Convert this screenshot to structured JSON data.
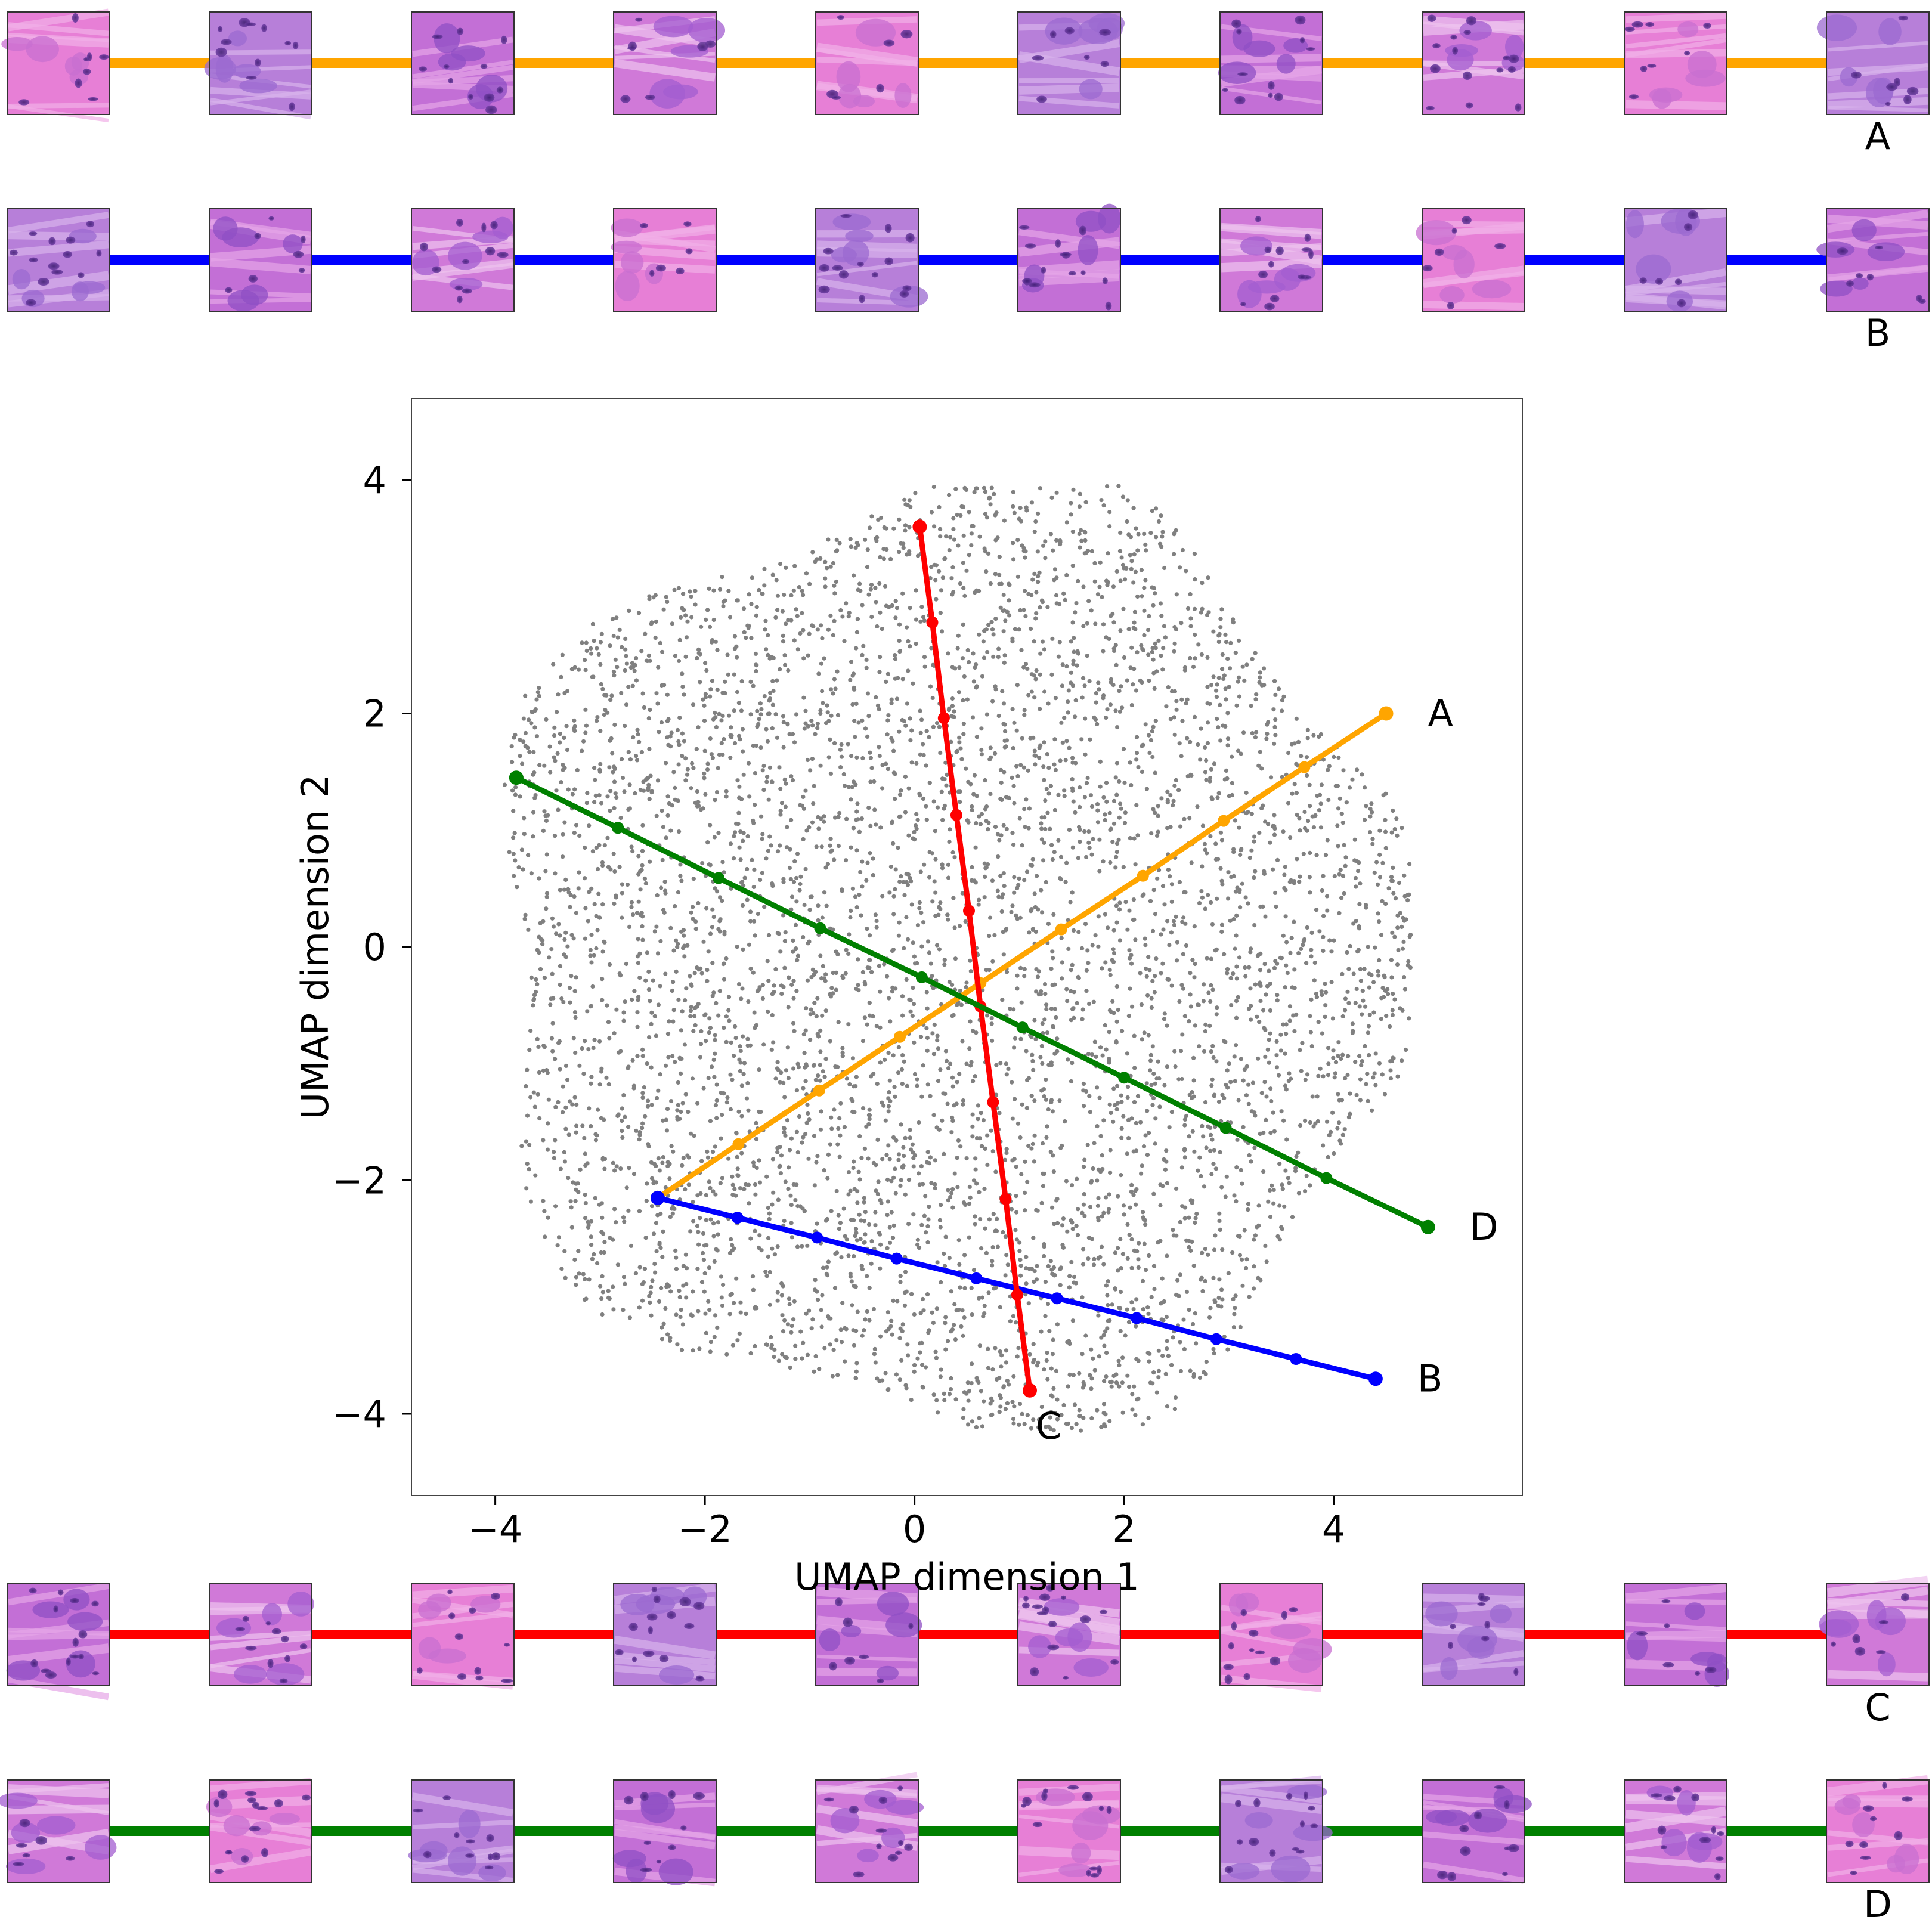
{
  "chart_data": {
    "type": "scatter",
    "title": "",
    "xlabel": "UMAP dimension 1",
    "ylabel": "UMAP dimension 2",
    "xlim": [
      -4.8,
      5.8
    ],
    "ylim": [
      -4.7,
      4.7
    ],
    "xticks": [
      -4,
      -2,
      0,
      2,
      4
    ],
    "yticks": [
      -4,
      -2,
      0,
      2,
      4
    ],
    "xtick_labels": [
      "−4",
      "−2",
      "0",
      "2",
      "4"
    ],
    "ytick_labels": [
      "−4",
      "−2",
      "0",
      "2",
      "4"
    ],
    "grid": false,
    "background_points": {
      "color": "#808080",
      "approx_count": 7000,
      "distribution": "roughly circular cloud centered near (0.5, -0.2), x from -4.4 to 5.1, y from -4.3 to 4.2"
    },
    "series": [
      {
        "name": "A",
        "color": "#FFA500",
        "start": [
          -2.45,
          -2.15
        ],
        "end": [
          4.5,
          2.0
        ],
        "points": [
          [
            -2.45,
            -2.15
          ],
          [
            -1.68,
            -1.69
          ],
          [
            -0.91,
            -1.23
          ],
          [
            -0.14,
            -0.77
          ],
          [
            0.63,
            -0.31
          ],
          [
            1.4,
            0.15
          ],
          [
            2.18,
            0.61
          ],
          [
            2.95,
            1.08
          ],
          [
            3.72,
            1.54
          ],
          [
            4.5,
            2.0
          ]
        ]
      },
      {
        "name": "B",
        "color": "#0000FF",
        "start": [
          -2.45,
          -2.15
        ],
        "end": [
          4.4,
          -3.7
        ],
        "points": [
          [
            -2.45,
            -2.15
          ],
          [
            -1.69,
            -2.32
          ],
          [
            -0.93,
            -2.49
          ],
          [
            -0.17,
            -2.67
          ],
          [
            0.59,
            -2.84
          ],
          [
            1.36,
            -3.01
          ],
          [
            2.12,
            -3.18
          ],
          [
            2.88,
            -3.36
          ],
          [
            3.64,
            -3.53
          ],
          [
            4.4,
            -3.7
          ]
        ]
      },
      {
        "name": "C",
        "color": "#FF0000",
        "start": [
          0.05,
          3.6
        ],
        "end": [
          1.1,
          -3.8
        ],
        "points": [
          [
            0.05,
            3.6
          ],
          [
            0.17,
            2.78
          ],
          [
            0.28,
            1.96
          ],
          [
            0.4,
            1.13
          ],
          [
            0.52,
            0.31
          ],
          [
            0.63,
            -0.51
          ],
          [
            0.75,
            -1.33
          ],
          [
            0.87,
            -2.16
          ],
          [
            0.98,
            -2.98
          ],
          [
            1.1,
            -3.8
          ]
        ]
      },
      {
        "name": "D",
        "color": "#008000",
        "start": [
          -3.8,
          1.45
        ],
        "end": [
          4.9,
          -2.4
        ],
        "points": [
          [
            -3.8,
            1.45
          ],
          [
            -2.83,
            1.02
          ],
          [
            -1.87,
            0.59
          ],
          [
            -0.9,
            0.16
          ],
          [
            0.07,
            -0.26
          ],
          [
            1.03,
            -0.69
          ],
          [
            2.0,
            -1.12
          ],
          [
            2.97,
            -1.55
          ],
          [
            3.93,
            -1.98
          ],
          [
            4.9,
            -2.4
          ]
        ]
      }
    ],
    "end_labels": [
      "A",
      "B",
      "C",
      "D"
    ]
  },
  "strips": [
    {
      "label": "A",
      "color": "#FFA500"
    },
    {
      "label": "B",
      "color": "#0000FF"
    },
    {
      "label": "C",
      "color": "#FF0000"
    },
    {
      "label": "D",
      "color": "#008000"
    }
  ],
  "tile_description": "H&E histopathology patches (pink/purple tissue)"
}
